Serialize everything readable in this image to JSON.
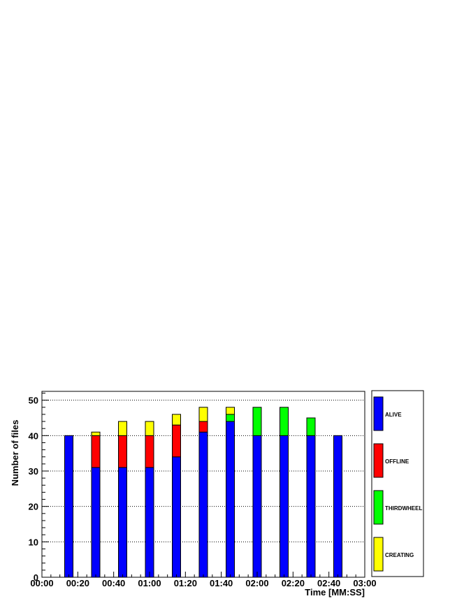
{
  "chart_data": {
    "type": "bar",
    "stacked": true,
    "xlabel": "Time [MM:SS]",
    "ylabel": "Number of files",
    "xlim": [
      0,
      180
    ],
    "ylim": [
      0,
      52.5
    ],
    "x_ticks": [
      "00:00",
      "00:20",
      "00:40",
      "01:00",
      "01:20",
      "01:40",
      "02:00",
      "02:20",
      "02:40",
      "03:00"
    ],
    "y_ticks": [
      0,
      10,
      20,
      30,
      40,
      50
    ],
    "grid": "dotted",
    "legend_position": "right",
    "x": [
      15,
      30,
      45,
      60,
      75,
      90,
      105,
      120,
      135,
      150,
      165
    ],
    "series": [
      {
        "name": "ALIVE",
        "color": "#0000ff",
        "values": [
          40,
          31,
          31,
          31,
          34,
          41,
          44,
          40,
          40,
          40,
          40
        ]
      },
      {
        "name": "OFFLINE",
        "color": "#ff0000",
        "values": [
          0,
          9,
          9,
          9,
          9,
          3,
          0,
          0,
          0,
          0,
          0
        ]
      },
      {
        "name": "THIRDWHEEL",
        "color": "#00ff00",
        "values": [
          0,
          0,
          0,
          0,
          0,
          0,
          2,
          8,
          8,
          5,
          0
        ]
      },
      {
        "name": "CREATING",
        "color": "#ffff00",
        "values": [
          0,
          1,
          4,
          4,
          3,
          4,
          2,
          0,
          0,
          0,
          0
        ]
      }
    ]
  }
}
